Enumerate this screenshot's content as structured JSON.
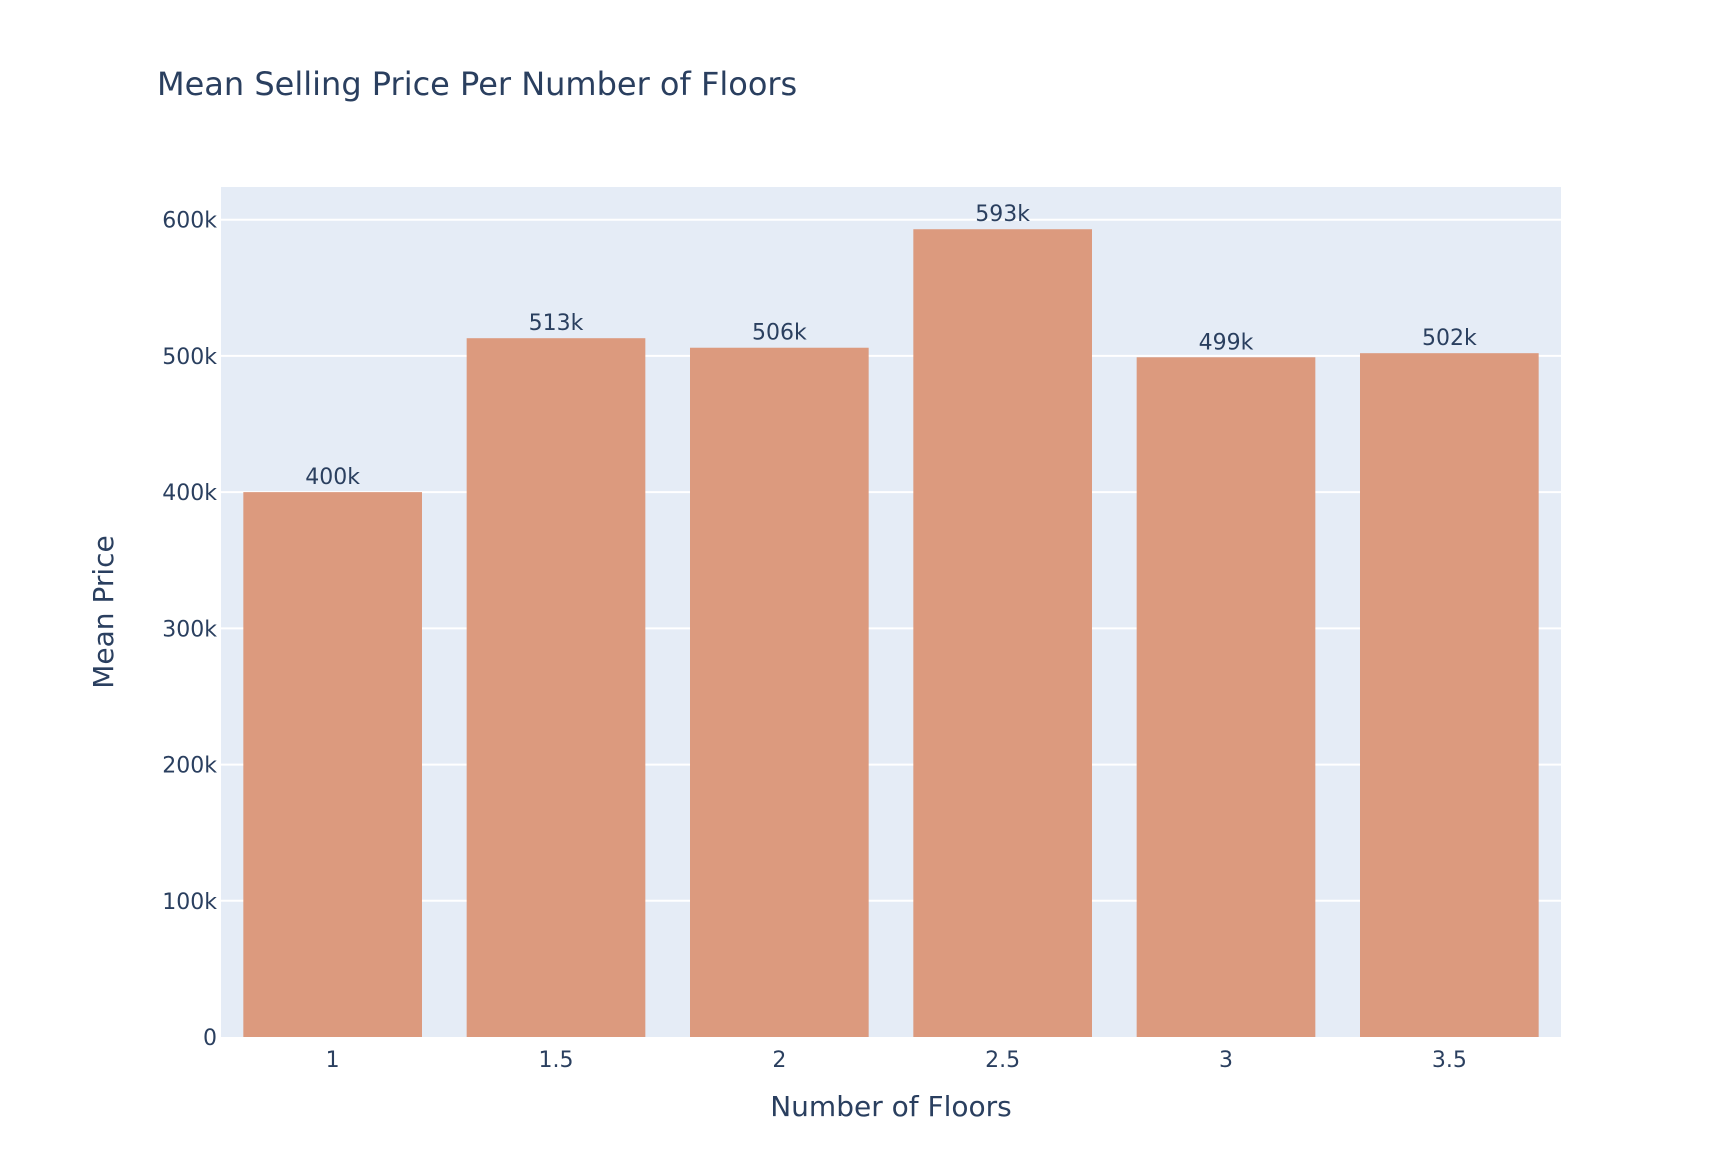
{
  "chart_data": {
    "type": "bar",
    "title": "Mean Selling Price Per Number of Floors",
    "xlabel": "Number of Floors",
    "ylabel": "Mean Price",
    "categories": [
      "1",
      "1.5",
      "2",
      "2.5",
      "3",
      "3.5"
    ],
    "values": [
      400000,
      513000,
      506000,
      593000,
      499000,
      502000
    ],
    "data_labels": [
      "400k",
      "513k",
      "506k",
      "593k",
      "499k",
      "502k"
    ],
    "ylim": [
      0,
      624000
    ],
    "yticks": [
      0,
      100000,
      200000,
      300000,
      400000,
      500000,
      600000
    ],
    "ytick_labels": [
      "0",
      "100k",
      "200k",
      "300k",
      "400k",
      "500k",
      "600k"
    ],
    "grid": true,
    "legend": "none",
    "bar_color": "#dc9a7e",
    "plot_bg": "#e5ecf6",
    "text_color": "#2a3f5f"
  }
}
